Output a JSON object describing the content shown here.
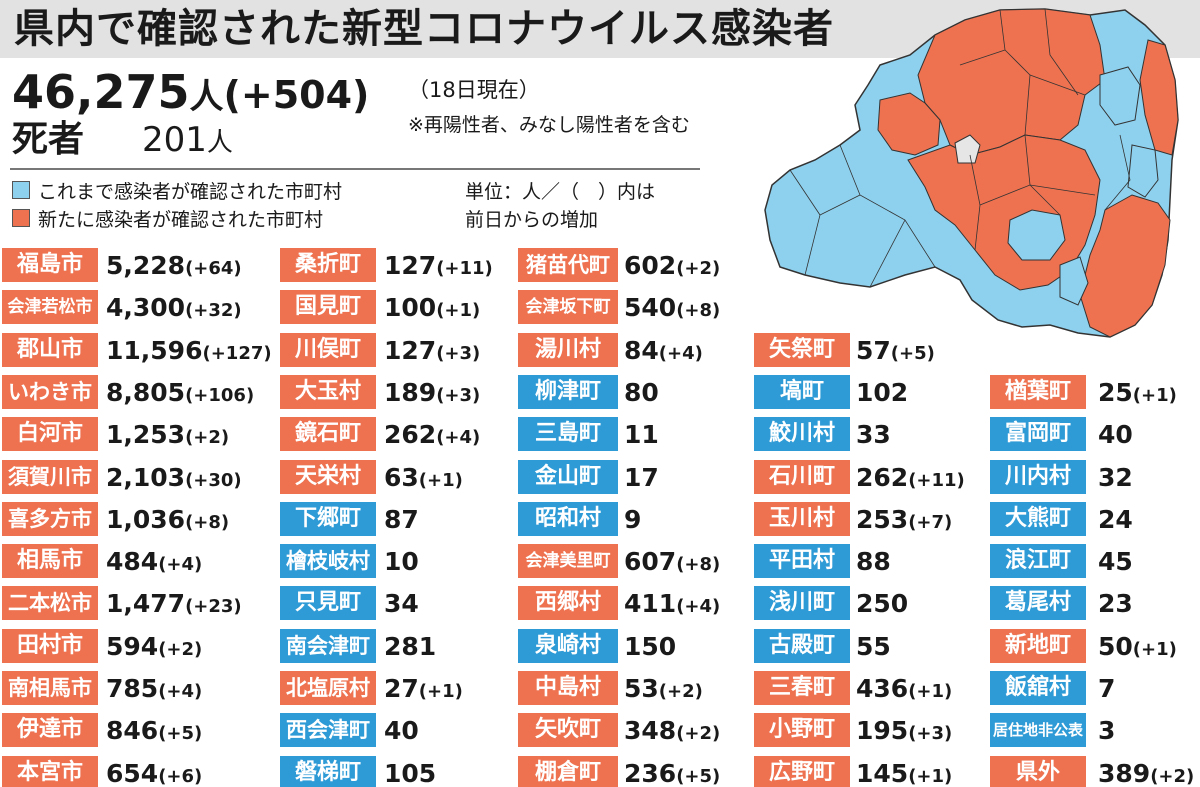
{
  "title": "県内で確認された新型コロナウイルス感染者",
  "total": {
    "count": "46,275",
    "unit": "人",
    "increase": "(+504)"
  },
  "as_of": "（18日現在）",
  "note": "※再陽性者、みなし陽性者を含む",
  "deaths": {
    "label": "死者",
    "count": "201",
    "unit": "人"
  },
  "legend": {
    "existing": "これまで感染者が確認された市町村",
    "new": "新たに感染者が確認された市町村",
    "units_line1": "単位：人／（　）内は",
    "units_line2": "前日からの増加"
  },
  "colors": {
    "new": "#ee7250",
    "existing": "#2f9bd6",
    "map_existing": "#8ed1ee",
    "map_none": "#e6e6e6"
  },
  "columns": [
    [
      {
        "name": "福島市",
        "count": "5,228",
        "delta": "(+64)",
        "status": "new"
      },
      {
        "name": "会津若松市",
        "count": "4,300",
        "delta": "(+32)",
        "status": "new"
      },
      {
        "name": "郡山市",
        "count": "11,596",
        "delta": "(+127)",
        "status": "new"
      },
      {
        "name": "いわき市",
        "count": "8,805",
        "delta": "(+106)",
        "status": "new"
      },
      {
        "name": "白河市",
        "count": "1,253",
        "delta": "(+2)",
        "status": "new"
      },
      {
        "name": "須賀川市",
        "count": "2,103",
        "delta": "(+30)",
        "status": "new"
      },
      {
        "name": "喜多方市",
        "count": "1,036",
        "delta": "(+8)",
        "status": "new"
      },
      {
        "name": "相馬市",
        "count": "484",
        "delta": "(+4)",
        "status": "new"
      },
      {
        "name": "二本松市",
        "count": "1,477",
        "delta": "(+23)",
        "status": "new"
      },
      {
        "name": "田村市",
        "count": "594",
        "delta": "(+2)",
        "status": "new"
      },
      {
        "name": "南相馬市",
        "count": "785",
        "delta": "(+4)",
        "status": "new"
      },
      {
        "name": "伊達市",
        "count": "846",
        "delta": "(+5)",
        "status": "new"
      },
      {
        "name": "本宮市",
        "count": "654",
        "delta": "(+6)",
        "status": "new"
      }
    ],
    [
      {
        "name": "桑折町",
        "count": "127",
        "delta": "(+11)",
        "status": "new"
      },
      {
        "name": "国見町",
        "count": "100",
        "delta": "(+1)",
        "status": "new"
      },
      {
        "name": "川俣町",
        "count": "127",
        "delta": "(+3)",
        "status": "new"
      },
      {
        "name": "大玉村",
        "count": "189",
        "delta": "(+3)",
        "status": "new"
      },
      {
        "name": "鏡石町",
        "count": "262",
        "delta": "(+4)",
        "status": "new"
      },
      {
        "name": "天栄村",
        "count": "63",
        "delta": "(+1)",
        "status": "new"
      },
      {
        "name": "下郷町",
        "count": "87",
        "delta": "",
        "status": "old"
      },
      {
        "name": "檜枝岐村",
        "count": "10",
        "delta": "",
        "status": "old"
      },
      {
        "name": "只見町",
        "count": "34",
        "delta": "",
        "status": "old"
      },
      {
        "name": "南会津町",
        "count": "281",
        "delta": "",
        "status": "old"
      },
      {
        "name": "北塩原村",
        "count": "27",
        "delta": "(+1)",
        "status": "new"
      },
      {
        "name": "西会津町",
        "count": "40",
        "delta": "",
        "status": "old"
      },
      {
        "name": "磐梯町",
        "count": "105",
        "delta": "",
        "status": "old"
      }
    ],
    [
      {
        "name": "猪苗代町",
        "count": "602",
        "delta": "(+2)",
        "status": "new"
      },
      {
        "name": "会津坂下町",
        "count": "540",
        "delta": "(+8)",
        "status": "new"
      },
      {
        "name": "湯川村",
        "count": "84",
        "delta": "(+4)",
        "status": "new"
      },
      {
        "name": "柳津町",
        "count": "80",
        "delta": "",
        "status": "old"
      },
      {
        "name": "三島町",
        "count": "11",
        "delta": "",
        "status": "old"
      },
      {
        "name": "金山町",
        "count": "17",
        "delta": "",
        "status": "old"
      },
      {
        "name": "昭和村",
        "count": "9",
        "delta": "",
        "status": "old"
      },
      {
        "name": "会津美里町",
        "count": "607",
        "delta": "(+8)",
        "status": "new"
      },
      {
        "name": "西郷村",
        "count": "411",
        "delta": "(+4)",
        "status": "new"
      },
      {
        "name": "泉崎村",
        "count": "150",
        "delta": "",
        "status": "old"
      },
      {
        "name": "中島村",
        "count": "53",
        "delta": "(+2)",
        "status": "new"
      },
      {
        "name": "矢吹町",
        "count": "348",
        "delta": "(+2)",
        "status": "new"
      },
      {
        "name": "棚倉町",
        "count": "236",
        "delta": "(+5)",
        "status": "new"
      }
    ],
    [
      {
        "name": "矢祭町",
        "count": "57",
        "delta": "(+5)",
        "status": "new"
      },
      {
        "name": "塙町",
        "count": "102",
        "delta": "",
        "status": "old"
      },
      {
        "name": "鮫川村",
        "count": "33",
        "delta": "",
        "status": "old"
      },
      {
        "name": "石川町",
        "count": "262",
        "delta": "(+11)",
        "status": "new"
      },
      {
        "name": "玉川村",
        "count": "253",
        "delta": "(+7)",
        "status": "new"
      },
      {
        "name": "平田村",
        "count": "88",
        "delta": "",
        "status": "old"
      },
      {
        "name": "浅川町",
        "count": "250",
        "delta": "",
        "status": "old"
      },
      {
        "name": "古殿町",
        "count": "55",
        "delta": "",
        "status": "old"
      },
      {
        "name": "三春町",
        "count": "436",
        "delta": "(+1)",
        "status": "new"
      },
      {
        "name": "小野町",
        "count": "195",
        "delta": "(+3)",
        "status": "new"
      },
      {
        "name": "広野町",
        "count": "145",
        "delta": "(+1)",
        "status": "new"
      }
    ],
    [
      {
        "name": "楢葉町",
        "count": "25",
        "delta": "(+1)",
        "status": "new"
      },
      {
        "name": "富岡町",
        "count": "40",
        "delta": "",
        "status": "old"
      },
      {
        "name": "川内村",
        "count": "32",
        "delta": "",
        "status": "old"
      },
      {
        "name": "大熊町",
        "count": "24",
        "delta": "",
        "status": "old"
      },
      {
        "name": "浪江町",
        "count": "45",
        "delta": "",
        "status": "old"
      },
      {
        "name": "葛尾村",
        "count": "23",
        "delta": "",
        "status": "old"
      },
      {
        "name": "新地町",
        "count": "50",
        "delta": "(+1)",
        "status": "new"
      },
      {
        "name": "飯舘村",
        "count": "7",
        "delta": "",
        "status": "old"
      },
      {
        "name": "居住地非公表",
        "count": "3",
        "delta": "",
        "status": "old"
      },
      {
        "name": "県外",
        "count": "389",
        "delta": "(+2)",
        "status": "new"
      }
    ]
  ]
}
